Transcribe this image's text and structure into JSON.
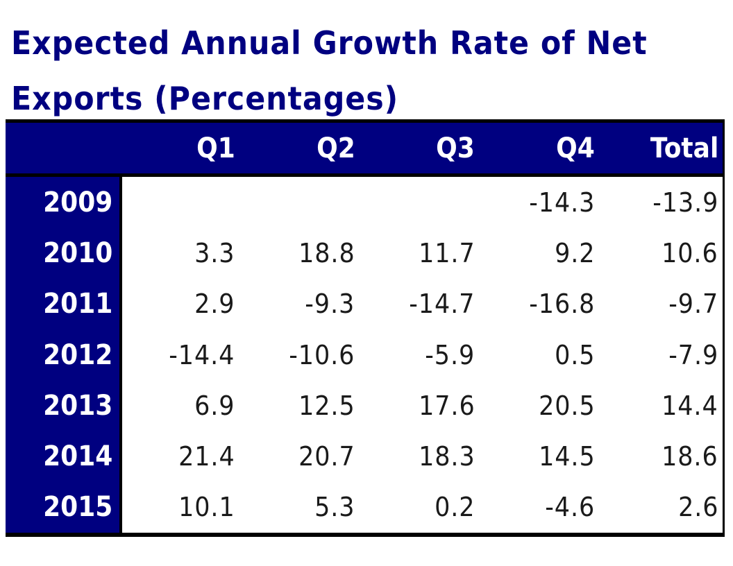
{
  "title": {
    "line1": "Expected Annual Growth Rate of Net",
    "line2": "Exports (Percentages)"
  },
  "table": {
    "columns": [
      "",
      "Q1",
      "Q2",
      "Q3",
      "Q4",
      "Total"
    ],
    "rows": [
      {
        "year": "2009",
        "values": [
          "",
          "",
          "",
          "-14.3",
          "-13.9"
        ]
      },
      {
        "year": "2010",
        "values": [
          "3.3",
          "18.8",
          "11.7",
          "9.2",
          "10.6"
        ]
      },
      {
        "year": "2011",
        "values": [
          "2.9",
          "-9.3",
          "-14.7",
          "-16.8",
          "-9.7"
        ]
      },
      {
        "year": "2012",
        "values": [
          "-14.4",
          "-10.6",
          "-5.9",
          "0.5",
          "-7.9"
        ]
      },
      {
        "year": "2013",
        "values": [
          "6.9",
          "12.5",
          "17.6",
          "20.5",
          "14.4"
        ]
      },
      {
        "year": "2014",
        "values": [
          "21.4",
          "20.7",
          "18.3",
          "14.5",
          "18.6"
        ]
      },
      {
        "year": "2015",
        "values": [
          "10.1",
          "5.3",
          "0.2",
          "-4.6",
          "2.6"
        ]
      }
    ]
  },
  "colors": {
    "header_bg": "#000080",
    "title_text": "#000080",
    "header_text": "#ffffff",
    "border": "#000000"
  }
}
